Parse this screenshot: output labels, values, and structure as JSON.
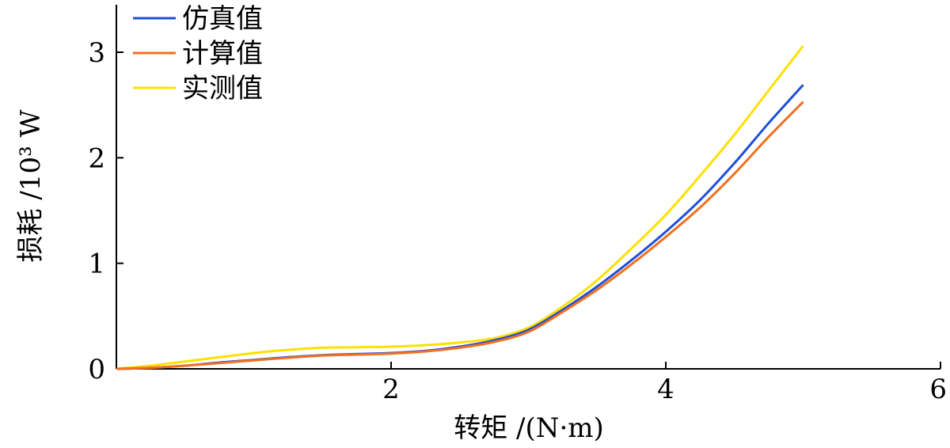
{
  "chart_data": {
    "type": "line",
    "title": "",
    "xlabel": "转矩 /(N·m)",
    "ylabel": "损耗 /10³ W",
    "xlim": [
      0,
      6
    ],
    "ylim": [
      0,
      3.45
    ],
    "x_ticks": [
      2,
      4,
      6
    ],
    "y_ticks": [
      0,
      1,
      2,
      3
    ],
    "x_tick_labels": [
      "2",
      "4",
      "6"
    ],
    "y_tick_labels": [
      "0",
      "1",
      "2",
      "3"
    ],
    "grid": false,
    "legend_position": "top-left",
    "x": [
      0,
      0.25,
      0.5,
      0.75,
      1.0,
      1.25,
      1.5,
      1.75,
      2.0,
      2.25,
      2.5,
      2.75,
      3.0,
      3.25,
      3.5,
      3.75,
      4.0,
      4.25,
      4.5,
      4.75,
      5.0
    ],
    "series": [
      {
        "name": "仿真值",
        "color": "#1f4fd8",
        "values": [
          0,
          0.01,
          0.03,
          0.06,
          0.085,
          0.11,
          0.13,
          0.14,
          0.15,
          0.17,
          0.21,
          0.27,
          0.37,
          0.56,
          0.78,
          1.03,
          1.3,
          1.6,
          1.95,
          2.33,
          2.69
        ]
      },
      {
        "name": "计算值",
        "color": "#f07020",
        "values": [
          0,
          0.01,
          0.03,
          0.055,
          0.08,
          0.105,
          0.125,
          0.135,
          0.145,
          0.165,
          0.2,
          0.255,
          0.35,
          0.54,
          0.75,
          0.99,
          1.25,
          1.53,
          1.85,
          2.2,
          2.53
        ]
      },
      {
        "name": "实测值",
        "color": "#ffe000",
        "values": [
          0,
          0.03,
          0.07,
          0.11,
          0.15,
          0.18,
          0.2,
          0.205,
          0.21,
          0.225,
          0.25,
          0.29,
          0.39,
          0.59,
          0.84,
          1.14,
          1.46,
          1.83,
          2.22,
          2.64,
          3.06
        ]
      }
    ]
  }
}
